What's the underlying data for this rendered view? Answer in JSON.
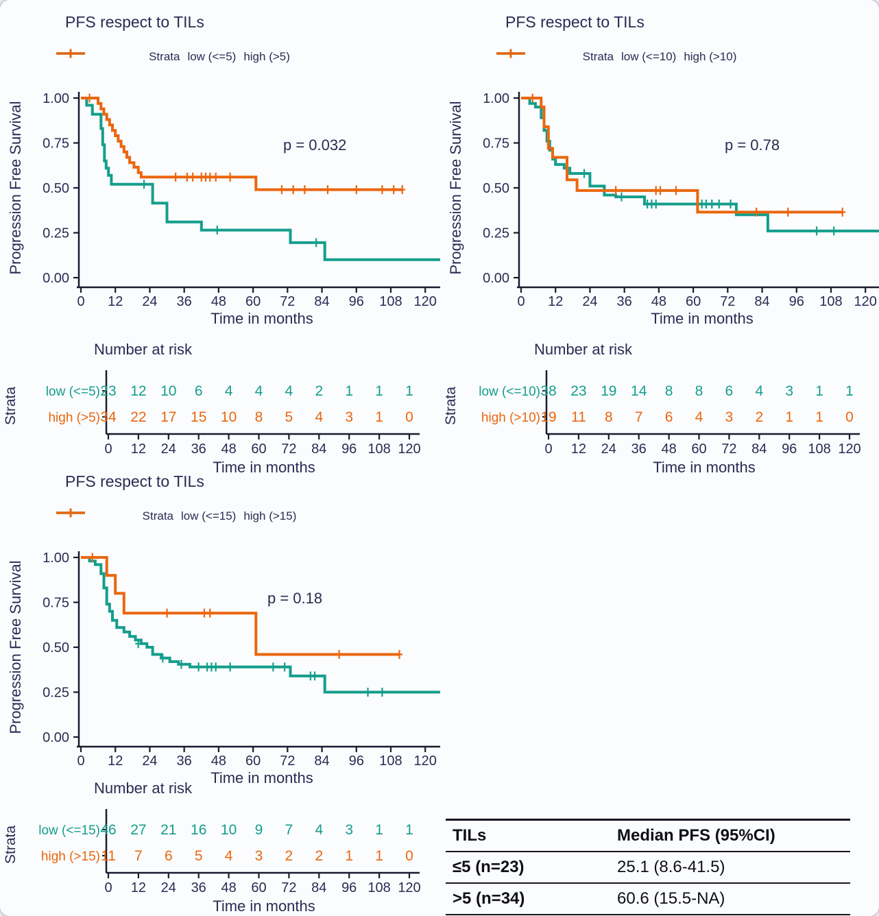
{
  "colors": {
    "low": "#149e8c",
    "high": "#eb660e",
    "text": "#2b2b52",
    "axis": "#1a1a2e"
  },
  "chart_data": [
    {
      "type": "line",
      "title": "PFS respect to TILs",
      "legend_title": "Strata",
      "p_value": "p = 0.032",
      "ylabel": "Progression Free Survival",
      "xlabel": "Time in months",
      "xlim": [
        0,
        126
      ],
      "ylim": [
        0,
        1
      ],
      "x_ticks": [
        0,
        12,
        24,
        36,
        48,
        60,
        72,
        84,
        96,
        108,
        120
      ],
      "y_ticks": [
        "1.00",
        "0.75",
        "0.50",
        "0.25",
        "0.00"
      ],
      "series": [
        {
          "name": "low (<=5)",
          "color": "#149e8c",
          "steps": [
            [
              0,
              1.0
            ],
            [
              2,
              0.96
            ],
            [
              4,
              0.91
            ],
            [
              7,
              0.83
            ],
            [
              7.6,
              0.74
            ],
            [
              8.2,
              0.65
            ],
            [
              8.8,
              0.61
            ],
            [
              9.6,
              0.57
            ],
            [
              10.6,
              0.52
            ],
            [
              25,
              0.415
            ],
            [
              30,
              0.31
            ],
            [
              42,
              0.265
            ],
            [
              73,
              0.195
            ],
            [
              85,
              0.1
            ]
          ],
          "end": 126,
          "censors": [
            [
              22,
              0.52
            ],
            [
              47.5,
              0.265
            ],
            [
              82,
              0.195
            ]
          ]
        },
        {
          "name": "high (>5)",
          "color": "#eb660e",
          "steps": [
            [
              0,
              1.0
            ],
            [
              6,
              0.97
            ],
            [
              7,
              0.94
            ],
            [
              8,
              0.91
            ],
            [
              9,
              0.88
            ],
            [
              10,
              0.85
            ],
            [
              11,
              0.82
            ],
            [
              12,
              0.79
            ],
            [
              13,
              0.76
            ],
            [
              14,
              0.73
            ],
            [
              15,
              0.7
            ],
            [
              16,
              0.67
            ],
            [
              17,
              0.64
            ],
            [
              18.5,
              0.615
            ],
            [
              20,
              0.585
            ],
            [
              21,
              0.56
            ],
            [
              61,
              0.49
            ]
          ],
          "end": 112,
          "censors": [
            [
              3,
              1.0
            ],
            [
              33,
              0.56
            ],
            [
              37,
              0.56
            ],
            [
              39,
              0.56
            ],
            [
              42,
              0.56
            ],
            [
              43.5,
              0.56
            ],
            [
              45,
              0.56
            ],
            [
              47,
              0.56
            ],
            [
              52,
              0.56
            ],
            [
              70,
              0.49
            ],
            [
              74,
              0.49
            ],
            [
              78,
              0.49
            ],
            [
              86,
              0.49
            ],
            [
              96,
              0.49
            ],
            [
              105,
              0.49
            ],
            [
              109,
              0.49
            ],
            [
              112,
              0.49
            ]
          ]
        }
      ],
      "risk_title": "Number at risk",
      "risk_axis_title": "Strata",
      "risk_rows": [
        {
          "label": "low (<=5)",
          "values": [
            23,
            12,
            10,
            6,
            4,
            4,
            4,
            2,
            1,
            1,
            1
          ]
        },
        {
          "label": "high (>5)",
          "values": [
            34,
            22,
            17,
            15,
            10,
            8,
            5,
            4,
            3,
            1,
            0
          ]
        }
      ]
    },
    {
      "type": "line",
      "title": "PFS respect to TILs",
      "legend_title": "Strata",
      "p_value": "p = 0.78",
      "ylabel": "Progression Free Survival",
      "xlabel": "Time in months",
      "xlim": [
        0,
        126
      ],
      "ylim": [
        0,
        1
      ],
      "x_ticks": [
        0,
        12,
        24,
        36,
        48,
        60,
        72,
        84,
        96,
        108,
        120
      ],
      "y_ticks": [
        "1.00",
        "0.75",
        "0.50",
        "0.25",
        "0.00"
      ],
      "series": [
        {
          "name": "low (<=10)",
          "color": "#149e8c",
          "steps": [
            [
              0,
              1.0
            ],
            [
              3,
              0.97
            ],
            [
              5,
              0.95
            ],
            [
              7,
              0.89
            ],
            [
              8,
              0.82
            ],
            [
              9,
              0.76
            ],
            [
              10,
              0.71
            ],
            [
              11,
              0.66
            ],
            [
              12,
              0.63
            ],
            [
              15,
              0.61
            ],
            [
              17,
              0.58
            ],
            [
              24,
              0.51
            ],
            [
              29,
              0.46
            ],
            [
              33,
              0.45
            ],
            [
              43,
              0.41
            ],
            [
              75,
              0.35
            ],
            [
              86,
              0.26
            ]
          ],
          "end": 127,
          "censors": [
            [
              22,
              0.58
            ],
            [
              35,
              0.45
            ],
            [
              44,
              0.41
            ],
            [
              45.5,
              0.41
            ],
            [
              47,
              0.41
            ],
            [
              63,
              0.41
            ],
            [
              64.5,
              0.41
            ],
            [
              66.5,
              0.41
            ],
            [
              69,
              0.41
            ],
            [
              73,
              0.41
            ],
            [
              103,
              0.26
            ],
            [
              109,
              0.26
            ]
          ]
        },
        {
          "name": "high (>10)",
          "color": "#eb660e",
          "steps": [
            [
              0,
              1.0
            ],
            [
              7,
              0.95
            ],
            [
              8,
              0.84
            ],
            [
              9.5,
              0.72
            ],
            [
              11,
              0.67
            ],
            [
              16,
              0.545
            ],
            [
              19.5,
              0.485
            ],
            [
              61.5,
              0.365
            ]
          ],
          "end": 112,
          "censors": [
            [
              4,
              1.0
            ],
            [
              33,
              0.485
            ],
            [
              47,
              0.485
            ],
            [
              48.5,
              0.485
            ],
            [
              54,
              0.485
            ],
            [
              82,
              0.365
            ],
            [
              93,
              0.365
            ],
            [
              112,
              0.365
            ]
          ]
        }
      ],
      "risk_title": "Number at risk",
      "risk_axis_title": "Strata",
      "risk_rows": [
        {
          "label": "low (<=10)",
          "values": [
            38,
            23,
            19,
            14,
            8,
            8,
            6,
            4,
            3,
            1,
            1
          ]
        },
        {
          "label": "high (>10)",
          "values": [
            19,
            11,
            8,
            7,
            6,
            4,
            3,
            2,
            1,
            1,
            0
          ]
        }
      ]
    },
    {
      "type": "line",
      "title": "PFS respect to TILs",
      "legend_title": "Strata",
      "p_value": "p = 0.18",
      "ylabel": "Progression Free Survival",
      "xlabel": "Time in months",
      "xlim": [
        0,
        126
      ],
      "ylim": [
        0,
        1
      ],
      "x_ticks": [
        0,
        12,
        24,
        36,
        48,
        60,
        72,
        84,
        96,
        108,
        120
      ],
      "y_ticks": [
        "1.00",
        "0.75",
        "0.50",
        "0.25",
        "0.00"
      ],
      "series": [
        {
          "name": "low (<=15)",
          "color": "#149e8c",
          "steps": [
            [
              0,
              1.0
            ],
            [
              3,
              0.98
            ],
            [
              5,
              0.96
            ],
            [
              7,
              0.91
            ],
            [
              8,
              0.83
            ],
            [
              9,
              0.74
            ],
            [
              10,
              0.7
            ],
            [
              11,
              0.65
            ],
            [
              12.5,
              0.61
            ],
            [
              15,
              0.585
            ],
            [
              17,
              0.56
            ],
            [
              19,
              0.54
            ],
            [
              21,
              0.52
            ],
            [
              23,
              0.5
            ],
            [
              25,
              0.46
            ],
            [
              28,
              0.44
            ],
            [
              31,
              0.42
            ],
            [
              34,
              0.405
            ],
            [
              38,
              0.39
            ],
            [
              73,
              0.34
            ],
            [
              85,
              0.25
            ]
          ],
          "end": 127,
          "censors": [
            [
              20,
              0.52
            ],
            [
              28.5,
              0.44
            ],
            [
              35,
              0.405
            ],
            [
              41,
              0.39
            ],
            [
              44,
              0.39
            ],
            [
              45.5,
              0.39
            ],
            [
              47,
              0.39
            ],
            [
              52,
              0.39
            ],
            [
              67,
              0.39
            ],
            [
              71,
              0.39
            ],
            [
              80,
              0.34
            ],
            [
              81.5,
              0.34
            ],
            [
              100,
              0.25
            ],
            [
              105,
              0.25
            ]
          ]
        },
        {
          "name": "high (>15)",
          "color": "#eb660e",
          "steps": [
            [
              0,
              1.0
            ],
            [
              9,
              0.9
            ],
            [
              12,
              0.8
            ],
            [
              15,
              0.69
            ],
            [
              61,
              0.46
            ]
          ],
          "end": 111,
          "censors": [
            [
              4,
              1.0
            ],
            [
              30,
              0.69
            ],
            [
              43,
              0.69
            ],
            [
              45,
              0.69
            ],
            [
              90,
              0.46
            ],
            [
              111,
              0.46
            ]
          ]
        }
      ],
      "risk_title": "Number at risk",
      "risk_axis_title": "Strata",
      "risk_rows": [
        {
          "label": "low (<=15)",
          "values": [
            46,
            27,
            21,
            16,
            10,
            9,
            7,
            4,
            3,
            1,
            1
          ]
        },
        {
          "label": "high (>15)",
          "values": [
            11,
            7,
            6,
            5,
            4,
            3,
            2,
            2,
            1,
            1,
            0
          ]
        }
      ]
    }
  ],
  "table": {
    "headers": [
      "TILs",
      "Median PFS (95%CI)"
    ],
    "rows": [
      [
        "≤5 (n=23)",
        "25.1 (8.6-41.5)"
      ],
      [
        ">5 (n=34)",
        "60.6 (15.5-NA)"
      ]
    ]
  }
}
